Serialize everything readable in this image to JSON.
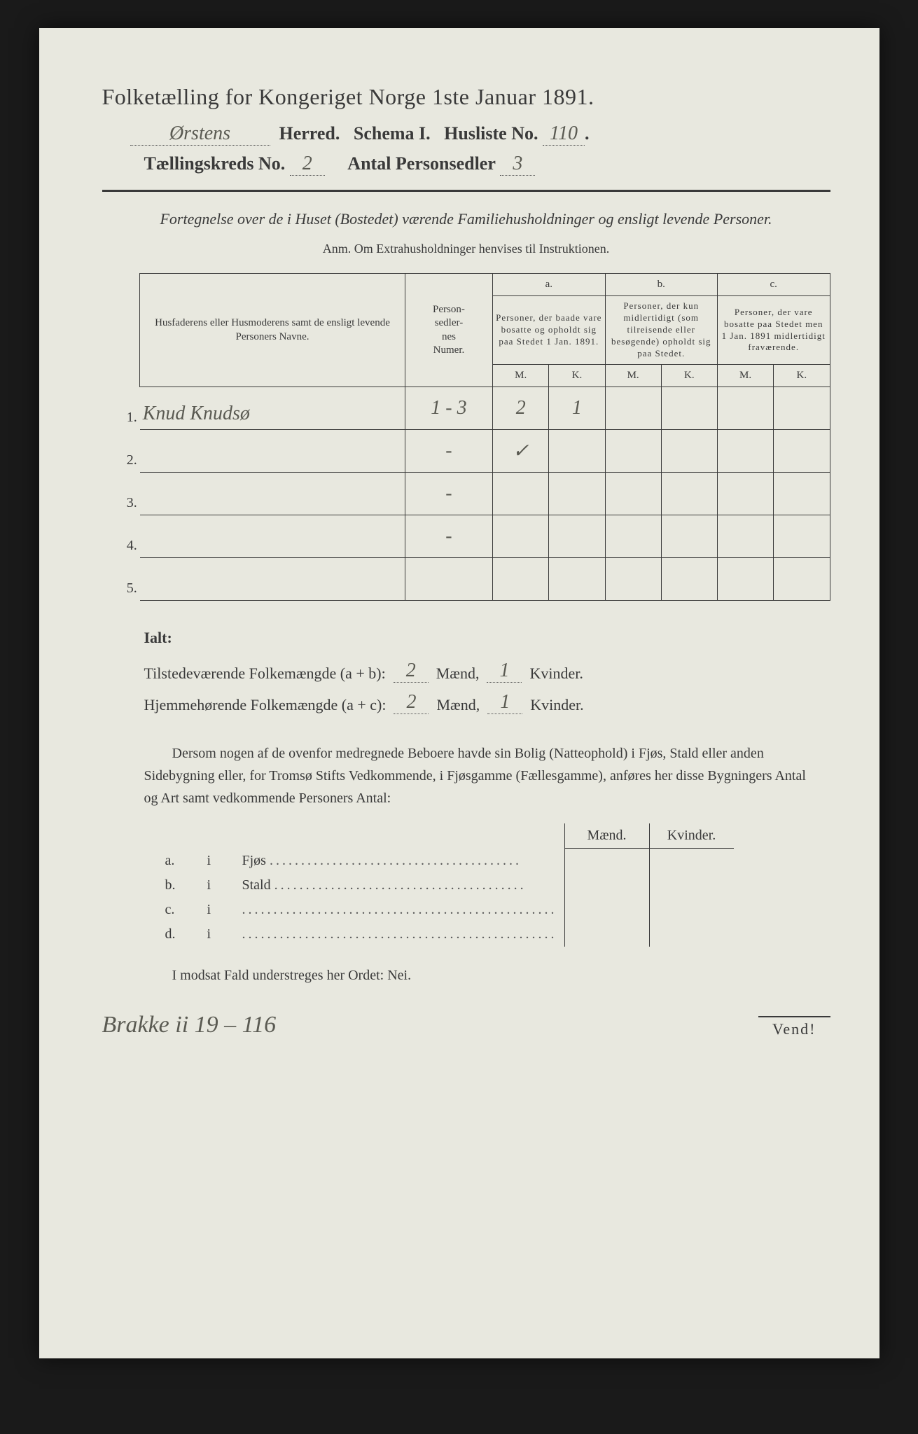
{
  "title": "Folketælling for Kongeriget Norge 1ste Januar 1891.",
  "herred_handwritten": "Ørstens",
  "header_line1_labels": {
    "herred": "Herred.",
    "schema": "Schema I.",
    "husliste": "Husliste No."
  },
  "husliste_no": "110",
  "header_line2_labels": {
    "kreds": "Tællingskreds No.",
    "antal": "Antal Personsedler"
  },
  "taellingskreds_no": "2",
  "antal_personsedler": "3",
  "intro": "Fortegnelse over de i Huset (Bostedet) værende Familiehusholdninger og ensligt levende Personer.",
  "anm": "Anm. Om Extrahusholdninger henvises til Instruktionen.",
  "table": {
    "col_name": "Husfaderens eller Husmoderens samt de ensligt levende Personers Navne.",
    "col_numer": "Person-\nsedler-\nnes\nNumer.",
    "col_a_letter": "a.",
    "col_a": "Personer, der baade vare bosatte og opholdt sig paa Stedet 1 Jan. 1891.",
    "col_b_letter": "b.",
    "col_b": "Personer, der kun midlertidigt (som tilreisende eller besøgende) opholdt sig paa Stedet.",
    "col_c_letter": "c.",
    "col_c": "Personer, der vare bosatte paa Stedet men 1 Jan. 1891 midlertidigt fraværende.",
    "M": "M.",
    "K": "K.",
    "rows": [
      {
        "n": "1.",
        "name": "Knud Knudsø",
        "numer": "1 - 3",
        "aM": "2",
        "aK": "1",
        "bM": "",
        "bK": "",
        "cM": "",
        "cK": ""
      },
      {
        "n": "2.",
        "name": "",
        "numer": "-",
        "aM": "✓",
        "aK": "",
        "bM": "",
        "bK": "",
        "cM": "",
        "cK": ""
      },
      {
        "n": "3.",
        "name": "",
        "numer": "-",
        "aM": "",
        "aK": "",
        "bM": "",
        "bK": "",
        "cM": "",
        "cK": ""
      },
      {
        "n": "4.",
        "name": "",
        "numer": "-",
        "aM": "",
        "aK": "",
        "bM": "",
        "bK": "",
        "cM": "",
        "cK": ""
      },
      {
        "n": "5.",
        "name": "",
        "numer": "",
        "aM": "",
        "aK": "",
        "bM": "",
        "bK": "",
        "cM": "",
        "cK": ""
      }
    ]
  },
  "totals": {
    "ialt": "Ialt:",
    "row1_label": "Tilstedeværende Folkemængde (a + b):",
    "row2_label": "Hjemmehørende Folkemængde (a + c):",
    "maend_label": "Mænd,",
    "kvinder_label": "Kvinder.",
    "row1_m": "2",
    "row1_k": "1",
    "row2_m": "2",
    "row2_k": "1"
  },
  "para": "Dersom nogen af de ovenfor medregnede Beboere havde sin Bolig (Natteophold) i Fjøs, Stald eller anden Sidebygning eller, for Tromsø Stifts Vedkommende, i Fjøsgamme (Fællesgamme), anføres her disse Bygningers Antal og Art samt vedkommende Personers Antal:",
  "side_table": {
    "head_m": "Mænd.",
    "head_k": "Kvinder.",
    "rows": [
      {
        "letter": "a.",
        "i": "i",
        "label": "Fjøs"
      },
      {
        "letter": "b.",
        "i": "i",
        "label": "Stald"
      },
      {
        "letter": "c.",
        "i": "i",
        "label": ""
      },
      {
        "letter": "d.",
        "i": "i",
        "label": ""
      }
    ]
  },
  "nei_line": "I modsat Fald understreges her Ordet: Nei.",
  "footer_hand": "Brakke ii 19 – 116",
  "vend": "Vend!"
}
